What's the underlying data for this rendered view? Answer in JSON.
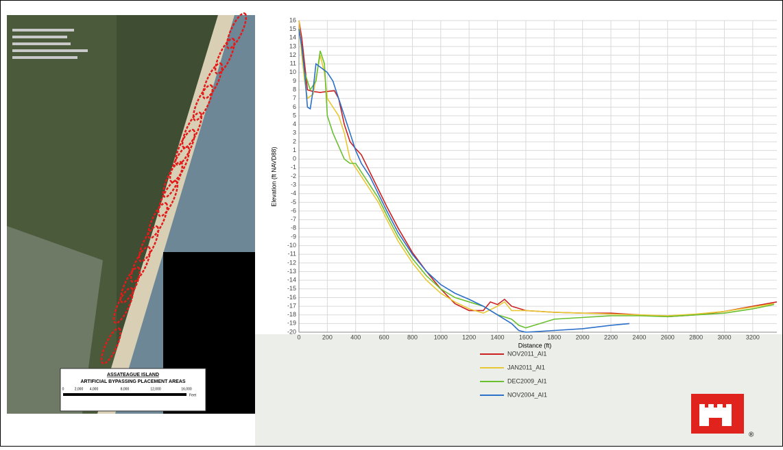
{
  "map": {
    "title": "ASSATEAGUE ISLAND",
    "subtitle": "ARTIFICIAL BYPASSING PLACEMENT AREAS",
    "scale_labels": [
      "0",
      "2,000",
      "4,000",
      "8,000",
      "12,000",
      "16,000"
    ],
    "scale_unit": "Feet"
  },
  "logo_mark": "®",
  "chart_data": {
    "type": "line",
    "x_label": "Distance (ft)",
    "y_label": "Elevation (ft NAVD88)",
    "xlim": [
      0,
      3370
    ],
    "ylim": [
      -20,
      16
    ],
    "grid": true,
    "xticks": [
      0,
      200,
      400,
      600,
      800,
      1000,
      1200,
      1400,
      1600,
      1800,
      2000,
      2200,
      2400,
      2600,
      2800,
      3000,
      3200
    ],
    "yticks": [
      16,
      15,
      14,
      13,
      12,
      11,
      10,
      9,
      8,
      7,
      6,
      5,
      4,
      3,
      2,
      1,
      0,
      -1,
      -2,
      -3,
      -4,
      -5,
      -6,
      -7,
      -8,
      -9,
      -10,
      -11,
      -12,
      -13,
      -14,
      -15,
      -16,
      -17,
      -18,
      -19,
      -20
    ],
    "series": [
      {
        "name": "NOV2011_AI1",
        "color": "#cc1f1f",
        "x": [
          0,
          20,
          40,
          60,
          100,
          150,
          200,
          250,
          280,
          320,
          360,
          400,
          440,
          500,
          560,
          620,
          700,
          800,
          900,
          1000,
          1100,
          1200,
          1300,
          1350,
          1400,
          1450,
          1500,
          1600,
          1800,
          2000,
          2200,
          2400,
          2600,
          2800,
          3000,
          3200,
          3370
        ],
        "values": [
          16,
          14,
          11,
          8,
          7.8,
          7.7,
          7.8,
          7.9,
          7,
          4,
          2,
          1.2,
          0.5,
          -1.5,
          -3.5,
          -5.5,
          -8,
          -10.8,
          -13,
          -15,
          -16.7,
          -17.5,
          -17.5,
          -16.5,
          -16.8,
          -16.2,
          -17,
          -17.5,
          -17.7,
          -17.8,
          -17.8,
          -18,
          -18.2,
          -18,
          -17.6,
          -17,
          -16.5
        ]
      },
      {
        "name": "JAN2011_AI1",
        "color": "#e8c832",
        "x": [
          0,
          20,
          40,
          60,
          100,
          150,
          180,
          200,
          240,
          280,
          320,
          360,
          400,
          440,
          500,
          560,
          620,
          700,
          800,
          900,
          1000,
          1100,
          1200,
          1300,
          1400,
          1450,
          1500,
          1600,
          1800,
          2000,
          2200,
          2400,
          2600,
          2800,
          3000,
          3200,
          3350
        ],
        "values": [
          16,
          12,
          9,
          7,
          7.5,
          12,
          10,
          7,
          6,
          5,
          3,
          0,
          -1,
          -2,
          -3.5,
          -5,
          -7,
          -9.5,
          -12,
          -14,
          -15.5,
          -16.5,
          -17.3,
          -17.8,
          -17,
          -16.5,
          -17.5,
          -17.5,
          -17.7,
          -17.8,
          -17.9,
          -18,
          -18.1,
          -17.9,
          -17.6,
          -17.1,
          -16.7
        ]
      },
      {
        "name": "DEC2009_AI1",
        "color": "#6abf2e",
        "x": [
          0,
          20,
          40,
          80,
          120,
          150,
          180,
          200,
          240,
          280,
          320,
          360,
          400,
          440,
          500,
          560,
          620,
          700,
          800,
          900,
          1000,
          1100,
          1200,
          1300,
          1400,
          1500,
          1550,
          1600,
          1700,
          1800,
          2000,
          2200,
          2400,
          2600,
          2800,
          3000,
          3200,
          3350
        ],
        "values": [
          15,
          13,
          10,
          8,
          9,
          12.5,
          11,
          5,
          3,
          1.5,
          0,
          -0.5,
          -0.5,
          -1.5,
          -3,
          -4.5,
          -6.5,
          -9,
          -11.5,
          -13.5,
          -15,
          -16,
          -16.5,
          -17,
          -18,
          -18.5,
          -19.2,
          -19.5,
          -19,
          -18.5,
          -18.3,
          -18.1,
          -18.1,
          -18.2,
          -18,
          -17.8,
          -17.3,
          -16.8
        ]
      },
      {
        "name": "NOV2004_AI1",
        "color": "#2a6fc9",
        "x": [
          0,
          20,
          40,
          60,
          80,
          100,
          120,
          160,
          200,
          240,
          280,
          320,
          360,
          400,
          440,
          500,
          560,
          620,
          700,
          800,
          900,
          1000,
          1100,
          1200,
          1300,
          1400,
          1500,
          1550,
          1600,
          1800,
          2000,
          2200,
          2330
        ],
        "values": [
          15,
          13,
          10,
          6,
          5.8,
          8,
          11,
          10.5,
          10,
          9,
          7,
          5,
          3,
          1,
          -0.5,
          -2,
          -4,
          -6,
          -8.5,
          -11,
          -13,
          -14.5,
          -15.5,
          -16.2,
          -17,
          -18,
          -19,
          -19.8,
          -20,
          -19.8,
          -19.6,
          -19.2,
          -19
        ]
      }
    ]
  }
}
